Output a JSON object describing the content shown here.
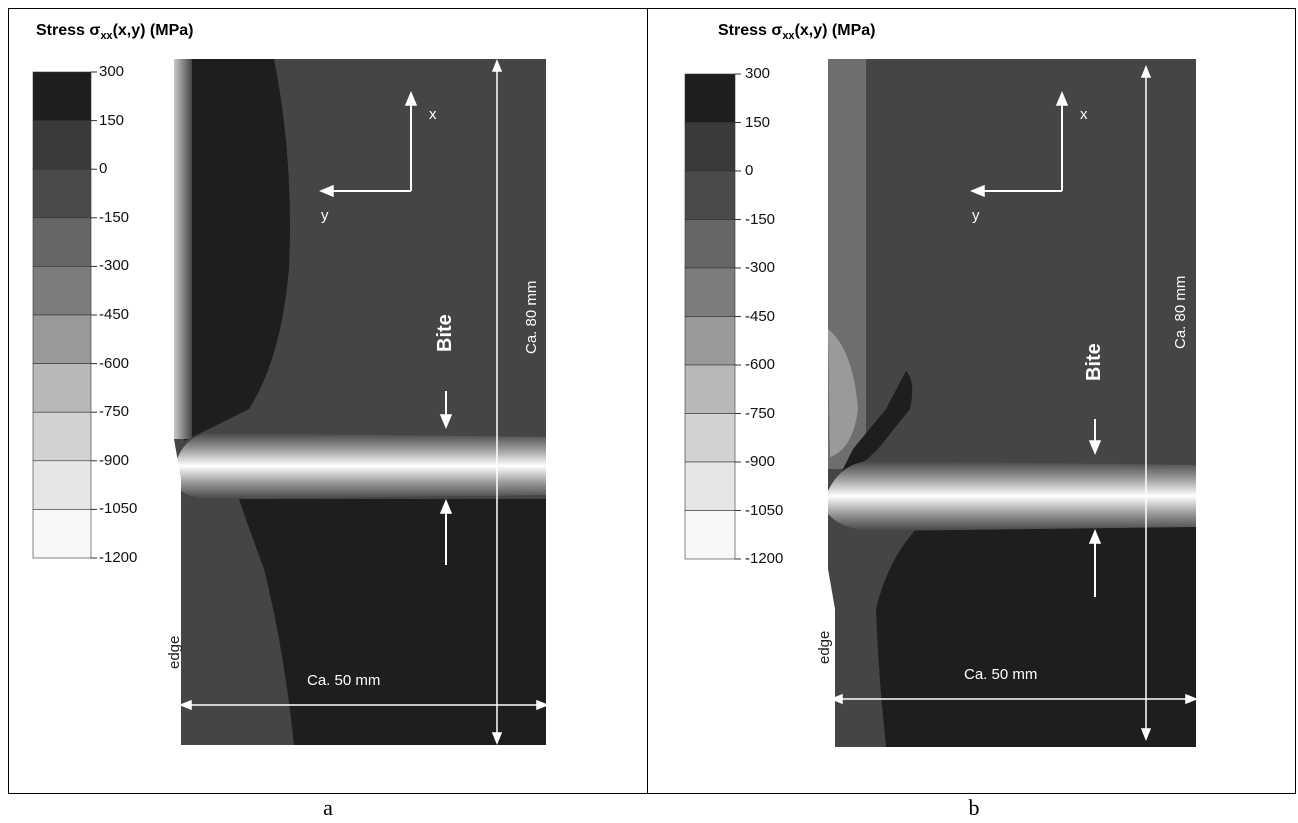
{
  "figure": {
    "panels": [
      {
        "id": "a",
        "caption": "a",
        "title_prefix": "Stress σ",
        "title_sub": "xx",
        "title_suffix": "(x,y) (MPa)",
        "axis_x": "x",
        "axis_y": "y",
        "bite": "Bite",
        "length_label": "Ca. 80 mm",
        "width_label": "Ca. 50 mm",
        "edge_label": "edge"
      },
      {
        "id": "b",
        "caption": "b",
        "title_prefix": "Stress σ",
        "title_sub": "xx",
        "title_suffix": "(x,y) (MPa)",
        "axis_x": "x",
        "axis_y": "y",
        "bite": "Bite",
        "length_label": "Ca. 80 mm",
        "width_label": "Ca. 50 mm",
        "edge_label": "edge"
      }
    ],
    "colorbar": {
      "levels": [
        "300",
        "150",
        "0",
        "-150",
        "-300",
        "-450",
        "-600",
        "-750",
        "-900",
        "-1050",
        "-1200"
      ],
      "band_colors": [
        "#1e1e1e",
        "#3a3a3a",
        "#4a4a4a",
        "#666666",
        "#7c7c7c",
        "#9a9a9a",
        "#b8b8b8",
        "#d2d2d2",
        "#e6e6e6",
        "#f8f8f8"
      ]
    },
    "colors": {
      "background_field": "#454545",
      "dark_zone": "#1e1e1e",
      "bite_band": "#ffffff",
      "frame": "#000000"
    }
  }
}
